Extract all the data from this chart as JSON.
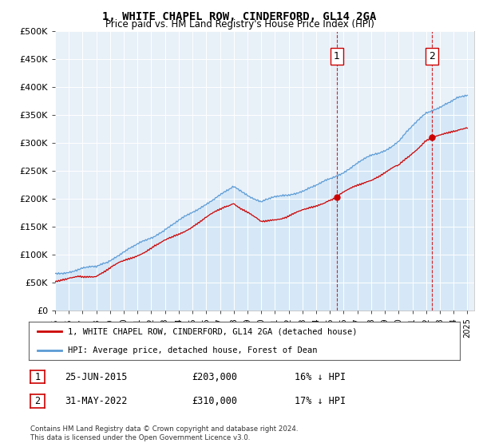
{
  "title": "1, WHITE CHAPEL ROW, CINDERFORD, GL14 2GA",
  "subtitle": "Price paid vs. HM Land Registry's House Price Index (HPI)",
  "legend_line1": "1, WHITE CHAPEL ROW, CINDERFORD, GL14 2GA (detached house)",
  "legend_line2": "HPI: Average price, detached house, Forest of Dean",
  "sale1_label": "1",
  "sale1_date": "25-JUN-2015",
  "sale1_price": "£203,000",
  "sale1_hpi": "16% ↓ HPI",
  "sale2_label": "2",
  "sale2_date": "31-MAY-2022",
  "sale2_price": "£310,000",
  "sale2_hpi": "17% ↓ HPI",
  "footer": "Contains HM Land Registry data © Crown copyright and database right 2024.\nThis data is licensed under the Open Government Licence v3.0.",
  "hpi_color": "#5b9bd5",
  "hpi_fill_color": "#d6e8f7",
  "price_color": "#cc0000",
  "dashed_color": "#cc0000",
  "sale1_x": 2015.5,
  "sale1_y": 203000,
  "sale2_x": 2022.42,
  "sale2_y": 310000,
  "ylim": [
    0,
    500000
  ],
  "xlim_start": 1995.0,
  "xlim_end": 2025.5,
  "yticks": [
    0,
    50000,
    100000,
    150000,
    200000,
    250000,
    300000,
    350000,
    400000,
    450000,
    500000
  ],
  "xticks": [
    1995,
    1996,
    1997,
    1998,
    1999,
    2000,
    2001,
    2002,
    2003,
    2004,
    2005,
    2006,
    2007,
    2008,
    2009,
    2010,
    2011,
    2012,
    2013,
    2014,
    2015,
    2016,
    2017,
    2018,
    2019,
    2020,
    2021,
    2022,
    2023,
    2024,
    2025
  ],
  "bg_color": "#e8f0f8",
  "fig_bg": "#ffffff"
}
